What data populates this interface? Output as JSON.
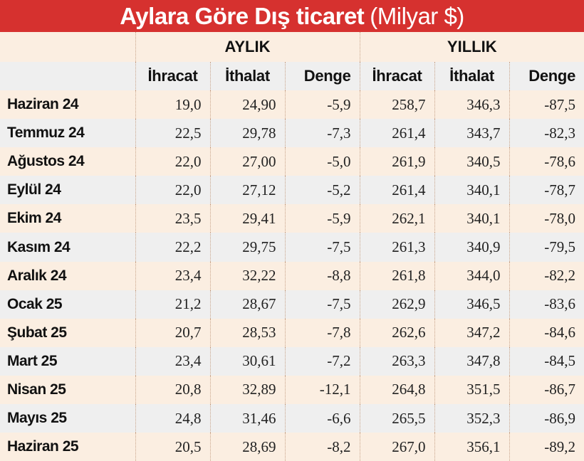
{
  "title": {
    "main": "Aylara Göre Dış ticaret",
    "unit": "(Milyar $)"
  },
  "groups": {
    "monthly": "AYLIK",
    "yearly": "YILLIK"
  },
  "columns": [
    "İhracat",
    "İthalat",
    "Denge",
    "İhracat",
    "İthalat",
    "Denge"
  ],
  "rows": [
    {
      "label": "Haziran 24",
      "values": [
        "19,0",
        "24,90",
        "-5,9",
        "258,7",
        "346,3",
        "-87,5"
      ]
    },
    {
      "label": "Temmuz 24",
      "values": [
        "22,5",
        "29,78",
        "-7,3",
        "261,4",
        "343,7",
        "-82,3"
      ]
    },
    {
      "label": "Ağustos 24",
      "values": [
        "22,0",
        "27,00",
        "-5,0",
        "261,9",
        "340,5",
        "-78,6"
      ]
    },
    {
      "label": "Eylül 24",
      "values": [
        "22,0",
        "27,12",
        "-5,2",
        "261,4",
        "340,1",
        "-78,7"
      ]
    },
    {
      "label": "Ekim 24",
      "values": [
        "23,5",
        "29,41",
        "-5,9",
        "262,1",
        "340,1",
        "-78,0"
      ]
    },
    {
      "label": "Kasım 24",
      "values": [
        "22,2",
        "29,75",
        "-7,5",
        "261,3",
        "340,9",
        "-79,5"
      ]
    },
    {
      "label": "Aralık 24",
      "values": [
        "23,4",
        "32,22",
        "-8,8",
        "261,8",
        "344,0",
        "-82,2"
      ]
    },
    {
      "label": "Ocak 25",
      "values": [
        "21,2",
        "28,67",
        "-7,5",
        "262,9",
        "346,5",
        "-83,6"
      ]
    },
    {
      "label": "Şubat 25",
      "values": [
        "20,7",
        "28,53",
        "-7,8",
        "262,6",
        "347,2",
        "-84,6"
      ]
    },
    {
      "label": "Mart 25",
      "values": [
        "23,4",
        "30,61",
        "-7,2",
        "263,3",
        "347,8",
        "-84,5"
      ]
    },
    {
      "label": "Nisan 25",
      "values": [
        "20,8",
        "32,89",
        "-12,1",
        "264,8",
        "351,5",
        "-86,7"
      ]
    },
    {
      "label": "Mayıs 25",
      "values": [
        "24,8",
        "31,46",
        "-6,6",
        "265,5",
        "352,3",
        "-86,9"
      ]
    },
    {
      "label": "Haziran 25",
      "values": [
        "20,5",
        "28,69",
        "-8,2",
        "267,0",
        "356,1",
        "-89,2"
      ]
    }
  ],
  "colors": {
    "title_bg": "#d6312f",
    "row_cream": "#fbeee1",
    "row_gray": "#efefef"
  }
}
